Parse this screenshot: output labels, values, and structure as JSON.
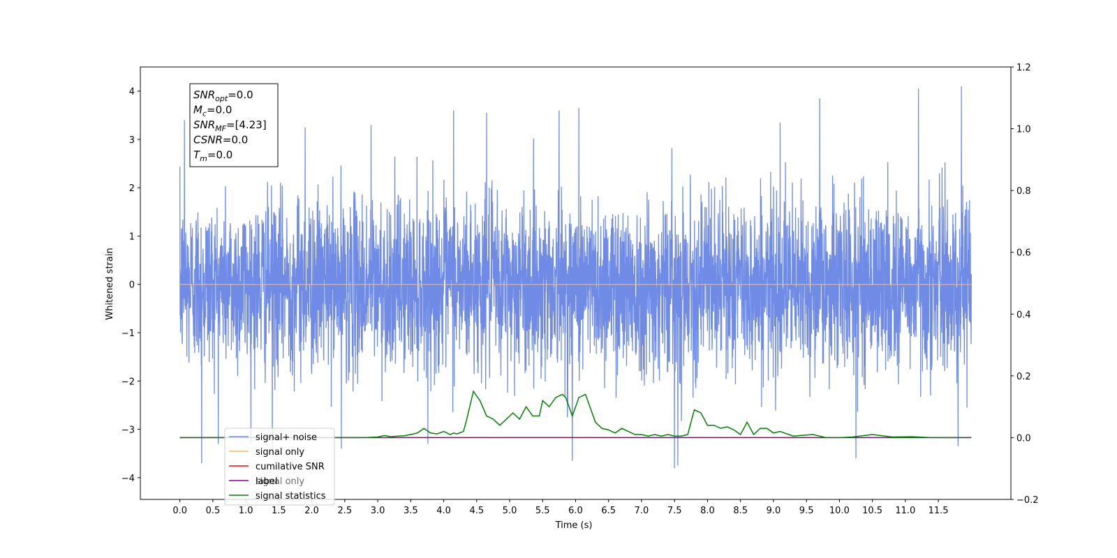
{
  "chart_data": {
    "type": "line",
    "xlabel": "Time (s)",
    "ylabel": "Whitened strain",
    "xlim": [
      -0.6,
      12.6
    ],
    "ylim": [
      -4.45,
      4.5
    ],
    "y2lim": [
      -0.2,
      1.2
    ],
    "x_ticks": [
      0.0,
      0.5,
      1.0,
      1.5,
      2.0,
      2.5,
      3.0,
      3.5,
      4.0,
      4.5,
      5.0,
      5.5,
      6.0,
      6.5,
      7.0,
      7.5,
      8.0,
      8.5,
      9.0,
      9.5,
      10.0,
      10.5,
      11.0,
      11.5
    ],
    "x_tick_labels": [
      "0.0",
      "0.5",
      "1.0",
      "1.5",
      "2.0",
      "2.5",
      "3.0",
      "3.5",
      "4.0",
      "4.5",
      "5.0",
      "5.5",
      "6.0",
      "6.5",
      "7.0",
      "7.5",
      "8.0",
      "8.5",
      "9.0",
      "9.5",
      "10.0",
      "10.5",
      "11.0",
      "11.5"
    ],
    "y_ticks": [
      -4,
      -3,
      -2,
      -1,
      0,
      1,
      2,
      3,
      4
    ],
    "y_tick_labels": [
      "−4",
      "−3",
      "−2",
      "−1",
      "0",
      "1",
      "2",
      "3",
      "4"
    ],
    "y2_ticks": [
      -0.2,
      0.0,
      0.2,
      0.4,
      0.6,
      0.8,
      1.0,
      1.2
    ],
    "y2_tick_labels": [
      "−0.2",
      "0.0",
      "0.2",
      "0.4",
      "0.6",
      "0.8",
      "1.0",
      "1.2"
    ],
    "grid": false,
    "legend_position": "lower-left",
    "colors": {
      "signal_noise": "#6f8be6",
      "signal_only": "#ffb74d",
      "cumulative_snr": "#ff0000",
      "label": "#800080",
      "signal_statistics": "#008000"
    },
    "series": [
      {
        "name": "signal+ noise",
        "axis": "left",
        "description_values": "white noise, std approx 0.9, range approx -3.8 to 4.1",
        "x_range": [
          0.0,
          12.0
        ],
        "peaks": [
          {
            "x": 0.07,
            "y": 3.4
          },
          {
            "x": 0.33,
            "y": -3.7
          },
          {
            "x": 1.4,
            "y": -3.5
          },
          {
            "x": 1.9,
            "y": 3.25
          },
          {
            "x": 2.45,
            "y": -3.4
          },
          {
            "x": 2.9,
            "y": 3.3
          },
          {
            "x": 4.15,
            "y": 3.6
          },
          {
            "x": 4.65,
            "y": 3.55
          },
          {
            "x": 5.75,
            "y": 3.6
          },
          {
            "x": 6.05,
            "y": 3.65
          },
          {
            "x": 5.95,
            "y": -3.65
          },
          {
            "x": 7.5,
            "y": -3.8
          },
          {
            "x": 7.55,
            "y": -3.75
          },
          {
            "x": 9.1,
            "y": 3.35
          },
          {
            "x": 9.7,
            "y": 3.85
          },
          {
            "x": 10.25,
            "y": -3.6
          },
          {
            "x": 11.2,
            "y": 4.05
          },
          {
            "x": 11.85,
            "y": 4.1
          },
          {
            "x": 11.8,
            "y": -3.35
          }
        ]
      },
      {
        "name": "signal only",
        "axis": "left",
        "x": [
          0.0,
          12.0
        ],
        "values": [
          0.0,
          0.0
        ]
      },
      {
        "name": "cumilative SNR",
        "axis": "right",
        "x": [],
        "values": []
      },
      {
        "name": "label",
        "axis": "right",
        "x": [
          0.0,
          12.0
        ],
        "values": [
          0.0,
          0.0
        ]
      },
      {
        "name": "signal statistics",
        "axis": "right",
        "x": [
          0.0,
          2.8,
          3.0,
          3.1,
          3.2,
          3.3,
          3.4,
          3.5,
          3.6,
          3.7,
          3.8,
          3.9,
          4.0,
          4.1,
          4.15,
          4.2,
          4.3,
          4.35,
          4.45,
          4.55,
          4.65,
          4.75,
          4.85,
          4.95,
          5.05,
          5.15,
          5.25,
          5.35,
          5.45,
          5.5,
          5.6,
          5.7,
          5.8,
          5.85,
          5.95,
          6.05,
          6.15,
          6.3,
          6.4,
          6.5,
          6.6,
          6.7,
          6.8,
          6.9,
          7.0,
          7.1,
          7.2,
          7.3,
          7.4,
          7.5,
          7.6,
          7.7,
          7.8,
          7.9,
          8.0,
          8.1,
          8.2,
          8.3,
          8.4,
          8.5,
          8.6,
          8.7,
          8.8,
          8.9,
          9.0,
          9.1,
          9.3,
          9.6,
          9.8,
          10.0,
          10.2,
          10.5,
          10.8,
          11.1,
          11.4,
          11.6,
          11.95
        ],
        "values": [
          0.0,
          0.0,
          0.002,
          0.007,
          0.003,
          0.005,
          0.006,
          0.01,
          0.015,
          0.03,
          0.015,
          0.012,
          0.02,
          0.01,
          0.015,
          0.012,
          0.02,
          0.06,
          0.15,
          0.12,
          0.07,
          0.06,
          0.04,
          0.06,
          0.08,
          0.06,
          0.1,
          0.07,
          0.07,
          0.12,
          0.1,
          0.13,
          0.14,
          0.13,
          0.07,
          0.13,
          0.14,
          0.05,
          0.03,
          0.025,
          0.015,
          0.03,
          0.02,
          0.01,
          0.01,
          0.005,
          0.01,
          0.005,
          0.01,
          0.005,
          0.005,
          0.01,
          0.09,
          0.08,
          0.04,
          0.04,
          0.03,
          0.035,
          0.025,
          0.01,
          0.05,
          0.01,
          0.03,
          0.03,
          0.015,
          0.02,
          0.005,
          0.01,
          0.0,
          0.0,
          0.002,
          0.01,
          0.002,
          0.003,
          0.0,
          0.0,
          0.0
        ]
      }
    ],
    "legend": [
      {
        "label": "signal+ noise",
        "color": "#6f8be6"
      },
      {
        "label": "signal only",
        "color": "#ffb74d"
      },
      {
        "label": "cumilative SNR",
        "color": "#ff0000"
      },
      {
        "label": "label",
        "color": "#800080"
      },
      {
        "label": "signal statistics",
        "color": "#008000"
      }
    ],
    "hidden_legend_text": "signal only",
    "annotation": {
      "lines": [
        {
          "base": "SNR",
          "sub": "opt",
          "value": "=0.0"
        },
        {
          "base": "M",
          "sub": "c",
          "value": "=0.0"
        },
        {
          "base": "SNR",
          "sub": "MF",
          "value": "=[4.23]"
        },
        {
          "base": "CSNR",
          "sub": "",
          "value": "=0.0"
        },
        {
          "base": "T",
          "sub": "m",
          "value": "=0.0"
        }
      ]
    }
  }
}
